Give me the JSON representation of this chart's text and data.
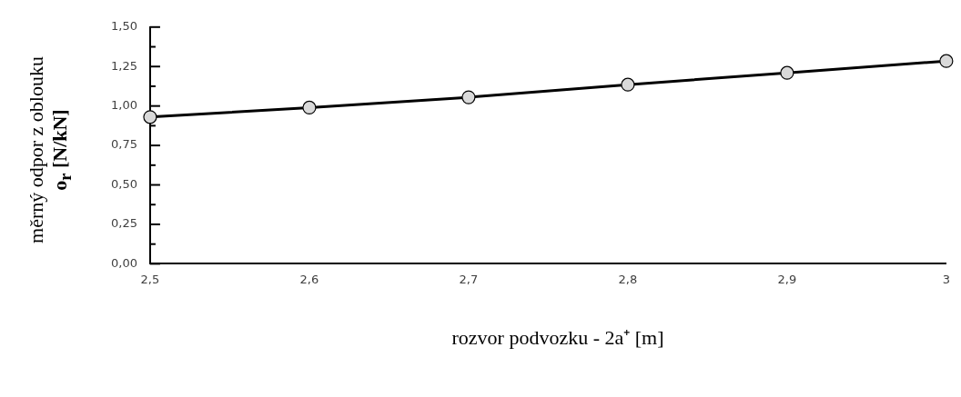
{
  "chart_data": {
    "type": "line",
    "xlabel": "rozvor podvozku - 2a⁺ [m]",
    "ylabel": "měrný odpor z oblouku\no$_{r}$ [N/kN]",
    "x": [
      2.5,
      2.6,
      2.7,
      2.8,
      2.9,
      3.0
    ],
    "series": [
      {
        "color": "#000000",
        "values": [
          0.93,
          0.99,
          1.055,
          1.135,
          1.21,
          1.285
        ]
      }
    ],
    "marker": "circle",
    "line_style": "solid",
    "grid": false,
    "legend": false,
    "xlim": [
      2.5,
      3.0
    ],
    "xticks": [
      {
        "value": 2.5,
        "label": "2,5"
      },
      {
        "value": 2.6,
        "label": "2,6"
      },
      {
        "value": 2.7,
        "label": "2,7"
      },
      {
        "value": 2.8,
        "label": "2,8"
      },
      {
        "value": 2.9,
        "label": "2,9"
      },
      {
        "value": 3,
        "label": "3"
      }
    ],
    "ylim": [
      0,
      1.5
    ],
    "yticks": [
      {
        "value": 0,
        "label": "0,00"
      },
      {
        "value": 0.125,
        "label": null
      },
      {
        "value": 0.25,
        "label": "0,25"
      },
      {
        "value": 0.375,
        "label": null
      },
      {
        "value": 0.5,
        "label": "0,50"
      },
      {
        "value": 0.625,
        "label": null
      },
      {
        "value": 0.75,
        "label": "0,75"
      },
      {
        "value": 0.875,
        "label": null
      },
      {
        "value": 1,
        "label": "1,00"
      },
      {
        "value": 1.125,
        "label": null
      },
      {
        "value": 1.25,
        "label": "1,25"
      },
      {
        "value": 1.375,
        "label": null
      },
      {
        "value": 1.5,
        "label": "1,50"
      }
    ]
  }
}
